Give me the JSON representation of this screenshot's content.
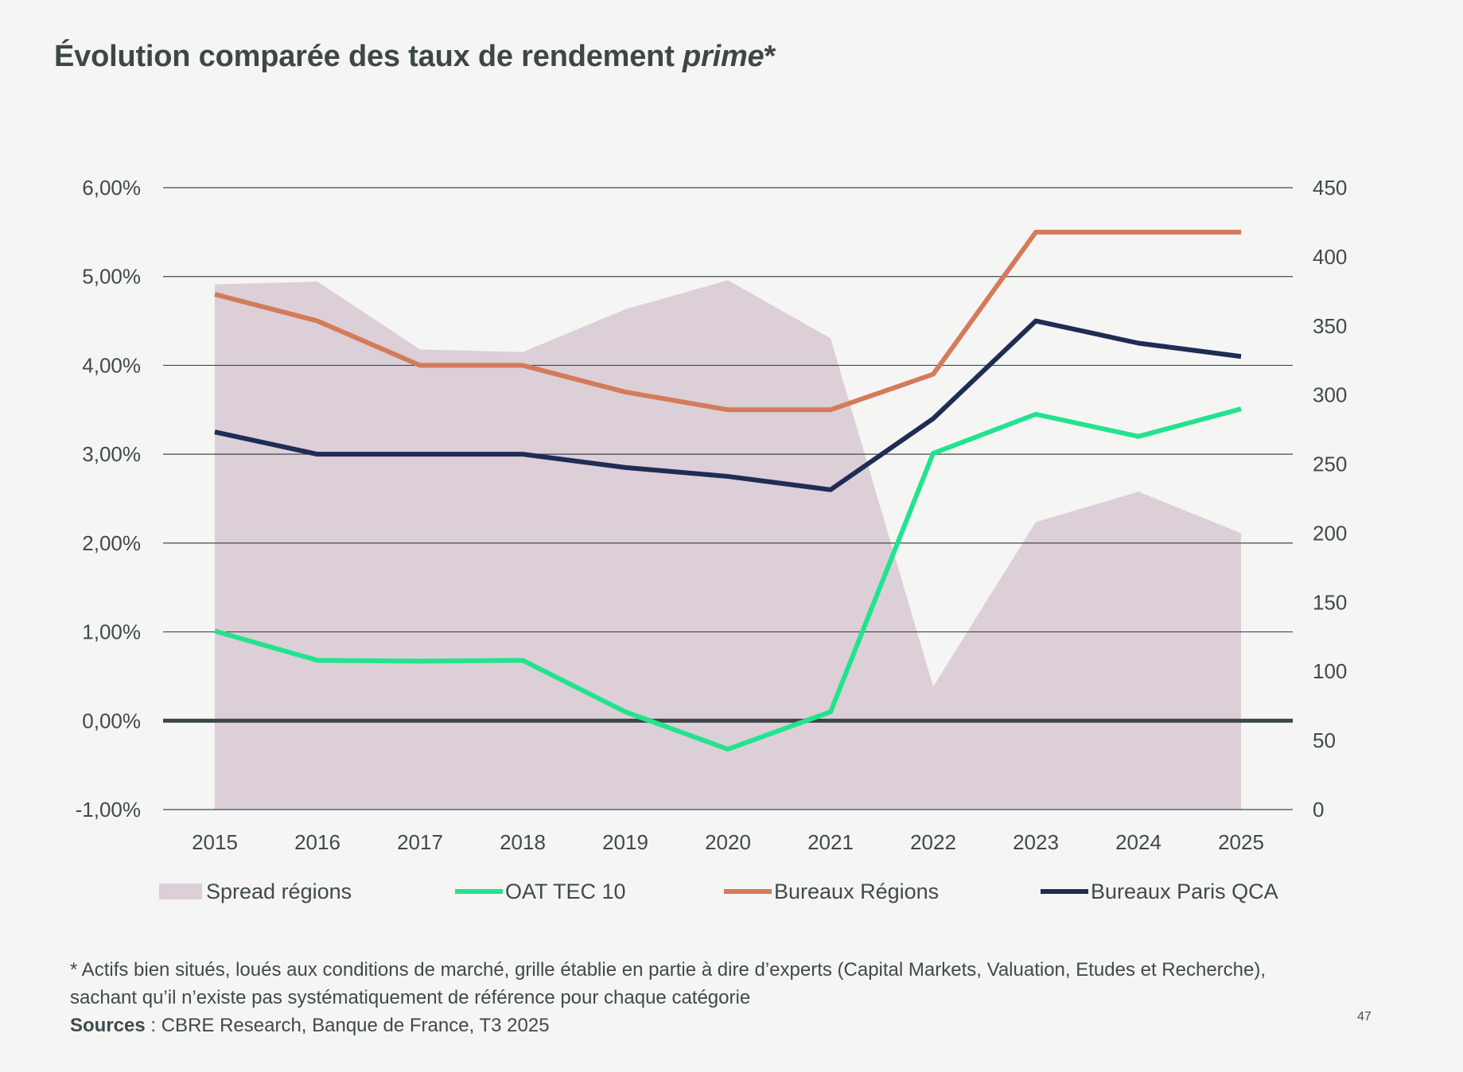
{
  "title": {
    "main": "Évolution comparée des taux de rendement ",
    "italic": "prime",
    "suffix": "*"
  },
  "chart_data": {
    "type": "line",
    "title": "Évolution comparée des taux de rendement prime*",
    "categories": [
      "2015",
      "2016",
      "2017",
      "2018",
      "2019",
      "2020",
      "2021",
      "2022",
      "2023",
      "2024",
      "2025"
    ],
    "y_left": {
      "ylim": [
        -1,
        6
      ],
      "ticks": [
        -1,
        0,
        1,
        2,
        3,
        4,
        5,
        6
      ],
      "tick_labels": [
        "-1,00%",
        "0,00%",
        "1,00%",
        "2,00%",
        "3,00%",
        "4,00%",
        "5,00%",
        "6,00%"
      ]
    },
    "y_right": {
      "ylim": [
        0,
        450
      ],
      "ticks": [
        0,
        50,
        100,
        150,
        200,
        250,
        300,
        350,
        400,
        450
      ],
      "tick_labels": [
        "0",
        "50",
        "100",
        "150",
        "200",
        "250",
        "300",
        "350",
        "400",
        "450"
      ]
    },
    "grid": true,
    "series": [
      {
        "name": "Spread régions",
        "type": "area",
        "axis": "right",
        "color": "#dccfd7",
        "values": [
          380,
          382,
          333,
          331,
          362,
          383,
          341,
          89,
          208,
          230,
          200
        ]
      },
      {
        "name": "OAT TEC 10",
        "type": "line",
        "axis": "left",
        "color": "#22e38e",
        "values": [
          1.01,
          0.68,
          0.67,
          0.68,
          0.1,
          -0.32,
          0.1,
          3.01,
          3.45,
          3.2,
          3.51
        ]
      },
      {
        "name": "Bureaux Régions",
        "type": "line",
        "axis": "left",
        "color": "#d47b5b",
        "values": [
          4.8,
          4.5,
          4.0,
          4.0,
          3.7,
          3.5,
          3.5,
          3.9,
          5.5,
          5.5,
          5.5
        ]
      },
      {
        "name": "Bureaux Paris QCA",
        "type": "line",
        "axis": "left",
        "color": "#1f2d55",
        "values": [
          3.25,
          3.0,
          3.0,
          3.0,
          2.85,
          2.75,
          2.6,
          3.4,
          4.5,
          4.25,
          4.1
        ]
      }
    ],
    "legend_position": "bottom"
  },
  "footnote": {
    "line1": "* Actifs bien situés, loués aux conditions de marché, grille établie en partie à dire d’experts (Capital Markets, Valuation, Etudes et Recherche),",
    "line2": "sachant qu’il n’existe pas systématiquement de référence pour chaque catégorie",
    "sources_label": "Sources",
    "sources_text": " : CBRE Research, Banque de France, T3 2025"
  },
  "page_number": "47",
  "colors": {
    "background": "#f5f5f4",
    "gridline": "#3f4a4d",
    "zero_line": "#3c4648",
    "text": "#3f4a4d"
  }
}
